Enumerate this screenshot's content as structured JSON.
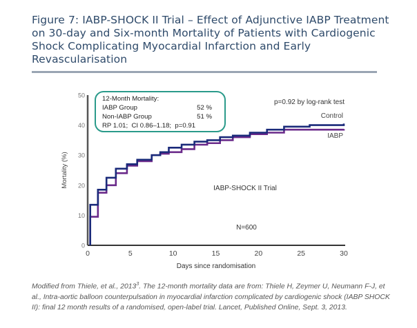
{
  "figure": {
    "title": "Figure 7: IABP-SHOCK II Trial – Effect of Adjunctive IABP Treatment on 30-day and Six-month Mortality of Patients with Cardiogenic Shock Complicating Myocardial Infarction and Early Revascularisation",
    "caption_pre": "Modified from Thiele, et al., 2013",
    "caption_sup": "3",
    "caption_post": ". The 12-month mortality data are from: Thiele H, Zeymer U, Neumann F-J, et al., Intra-aortic balloon counterpulsation in myocardial infarction complicated by cardiogenic shock (IABP SHOCK II): final 12 month results of a randomised, open-label trial. Lancet, Published Online, Sept. 3, 2013."
  },
  "colors": {
    "title": "#2e4a6a",
    "control": "#1a2a7a",
    "iabp": "#6a2a8a",
    "box_border": "#2a9a8a",
    "axis": "#333333"
  },
  "chart_data": {
    "type": "line",
    "step": true,
    "xlabel": "Days since randomisation",
    "ylabel": "Mortality (%)",
    "xlim": [
      0,
      30
    ],
    "ylim": [
      0,
      50
    ],
    "xticks": [
      0,
      5,
      10,
      15,
      20,
      25,
      30
    ],
    "yticks": [
      0,
      10,
      20,
      30,
      40,
      50
    ],
    "grid": false,
    "series": [
      {
        "name": "Control",
        "x": [
          0.3,
          1.2,
          2.2,
          3.3,
          4.6,
          5.8,
          7.5,
          8.5,
          9.5,
          11,
          12.5,
          14,
          15.5,
          17,
          19,
          21,
          23,
          26,
          30
        ],
        "y": [
          13.5,
          18.5,
          22.5,
          25.5,
          27,
          28.5,
          30,
          31,
          32.5,
          33.5,
          34.5,
          35,
          36,
          36.5,
          37.5,
          38.5,
          39.5,
          40,
          40.5
        ]
      },
      {
        "name": "IABP",
        "x": [
          0.3,
          1.2,
          2.2,
          3.3,
          4.6,
          5.8,
          7.5,
          8.5,
          9.5,
          11,
          12.5,
          14,
          15.5,
          17,
          19,
          21,
          23,
          30
        ],
        "y": [
          9.5,
          17.5,
          20,
          24,
          26.5,
          28,
          30,
          30.5,
          31,
          32,
          33.5,
          34,
          35,
          36,
          37,
          37.5,
          38.5,
          38.7
        ]
      }
    ],
    "annotations": {
      "pvalue": "p=0.92 by log-rank test",
      "trial": "IABP-SHOCK II Trial",
      "n": "N=600",
      "label_control": "Control",
      "label_iabp": "IABP"
    },
    "inset_box": {
      "title": "12-Month Mortality:",
      "rows": [
        {
          "label": "IABP Group",
          "value": "52 %"
        },
        {
          "label": "Non-IABP Group",
          "value": "51 %"
        }
      ],
      "stats": "RP 1.01;  CI 0.86–1.18;  p=0.91"
    }
  }
}
